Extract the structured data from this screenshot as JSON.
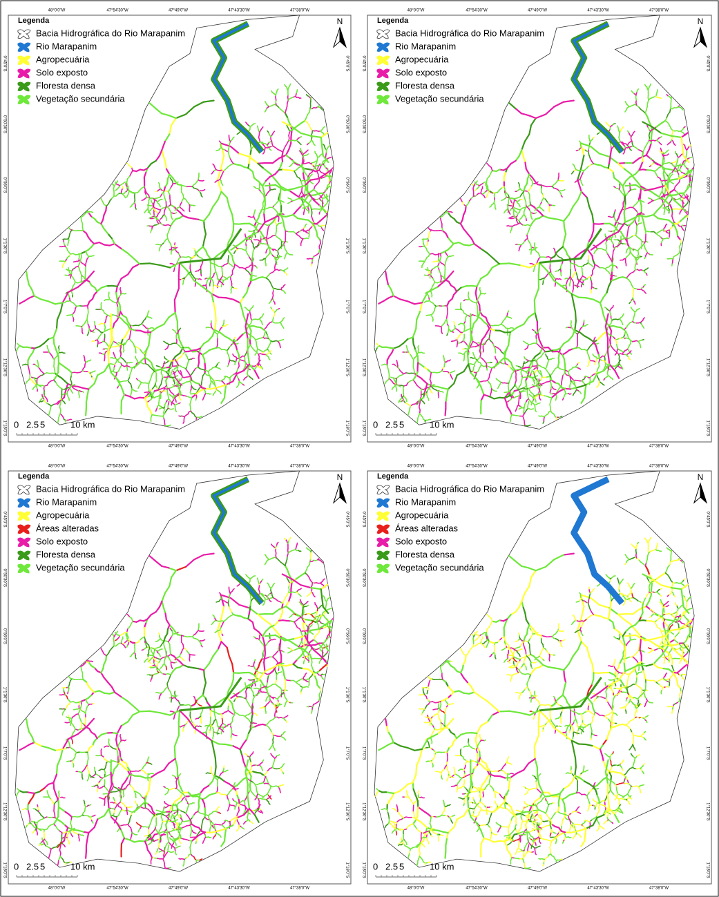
{
  "panels": [
    {
      "legend": {
        "title": "Legenda",
        "items": [
          {
            "label": "Bacia Hidrográfica do Rio Marapanim",
            "color": "#ffffff"
          },
          {
            "label": "Rio Marapanim",
            "color": "#1f78d1"
          },
          {
            "label": "Agropecuária",
            "color": "#ffff33"
          },
          {
            "label": "Solo exposto",
            "color": "#e81ca8"
          },
          {
            "label": "Floresta densa",
            "color": "#3a9a1a"
          },
          {
            "label": "Vegetação secundária",
            "color": "#6ee83a"
          }
        ]
      }
    },
    {
      "legend": {
        "title": "Legenda",
        "items": [
          {
            "label": "Bacia Hidrográfica do Rio Marapanim",
            "color": "#ffffff"
          },
          {
            "label": "Rio Marapanim",
            "color": "#1f78d1"
          },
          {
            "label": "Agropecuária",
            "color": "#ffff33"
          },
          {
            "label": "Solo exposto",
            "color": "#e81ca8"
          },
          {
            "label": "Floresta densa",
            "color": "#3a9a1a"
          },
          {
            "label": "Vegetação secundária",
            "color": "#6ee83a"
          }
        ]
      }
    },
    {
      "legend": {
        "title": "Legenda",
        "items": [
          {
            "label": "Bacia Hidrográfica do Rio Marapanim",
            "color": "#ffffff"
          },
          {
            "label": "Rio Marapanim",
            "color": "#1f78d1"
          },
          {
            "label": "Agropecuária",
            "color": "#ffff33"
          },
          {
            "label": "Áreas alteradas",
            "color": "#e8201c"
          },
          {
            "label": "Solo exposto",
            "color": "#e81ca8"
          },
          {
            "label": "Floresta densa",
            "color": "#3a9a1a"
          },
          {
            "label": "Vegetação secundária",
            "color": "#6ee83a"
          }
        ]
      }
    },
    {
      "legend": {
        "title": "Legenda",
        "items": [
          {
            "label": "Bacia Hidrográfica do Rio Marapanim",
            "color": "#ffffff"
          },
          {
            "label": "Rio Marapanim",
            "color": "#1f78d1"
          },
          {
            "label": "Agropecuária",
            "color": "#ffff33"
          },
          {
            "label": "Áreas alteradas",
            "color": "#e8201c"
          },
          {
            "label": "Solo exposto",
            "color": "#e81ca8"
          },
          {
            "label": "Floresta densa",
            "color": "#3a9a1a"
          },
          {
            "label": "Vegetação secundária",
            "color": "#6ee83a"
          }
        ]
      }
    }
  ],
  "x_labels": [
    "48°0'0\"W",
    "47°54'30\"W",
    "47°49'0\"W",
    "47°43'30\"W",
    "47°38'0\"W"
  ],
  "y_labels": [
    "0°45'0\"S",
    "0°50'30\"S",
    "0°56'0\"S",
    "1°1'30\"S",
    "1°7'0\"S",
    "1°12'30\"S",
    "1°18'0\"S"
  ],
  "scale_labels": [
    "0",
    "2.5",
    "5",
    "10 km"
  ],
  "north": "N"
}
